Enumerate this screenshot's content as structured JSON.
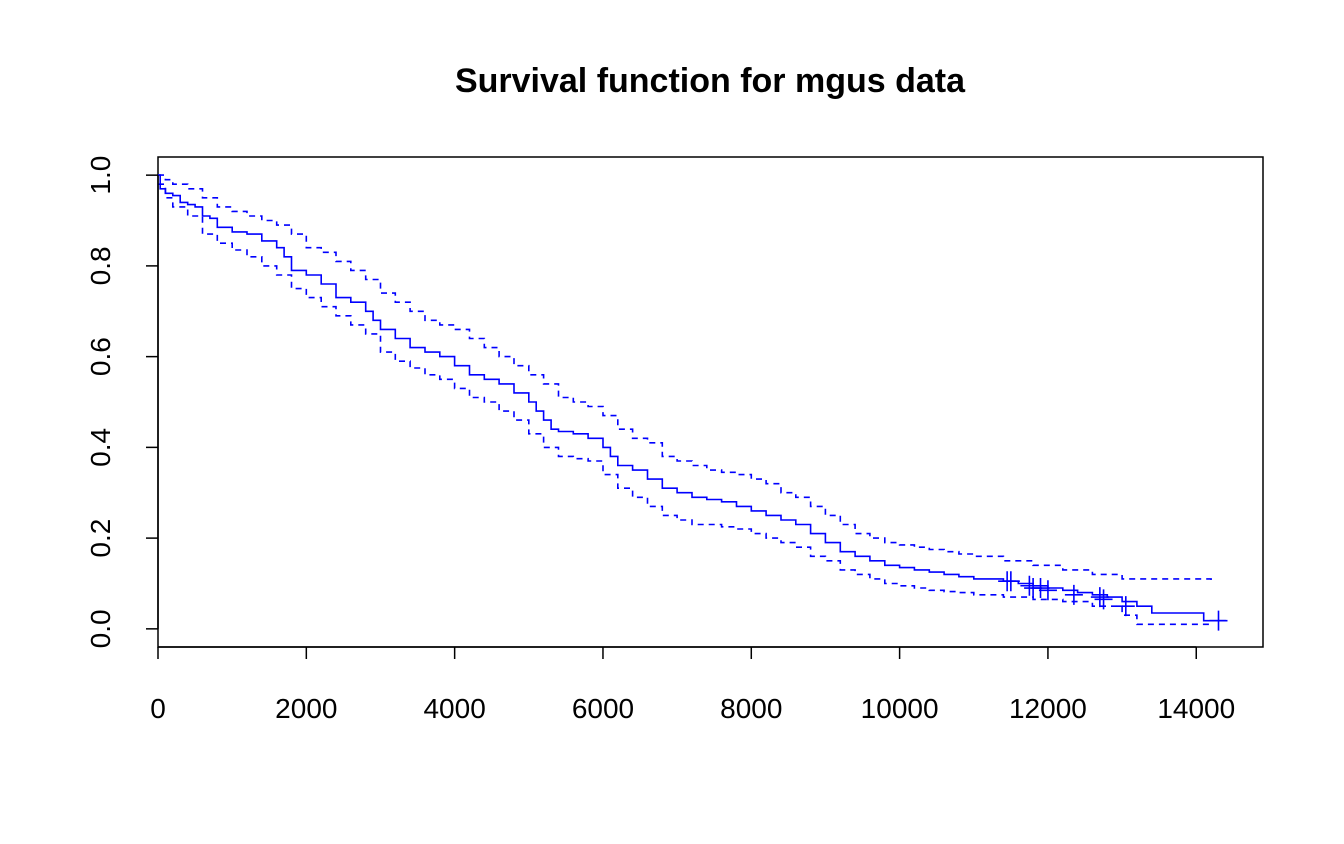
{
  "chart_data": {
    "type": "line",
    "title": "Survival function for mgus data",
    "xlabel": "",
    "ylabel": "",
    "xlim": [
      0,
      14900
    ],
    "ylim": [
      -0.04,
      1.04
    ],
    "x_ticks": [
      0,
      2000,
      4000,
      6000,
      8000,
      10000,
      12000,
      14000
    ],
    "x_tick_labels": [
      "0",
      "2000",
      "4000",
      "6000",
      "8000",
      "10000",
      "12000",
      "14000"
    ],
    "y_ticks": [
      0.0,
      0.2,
      0.4,
      0.6,
      0.8,
      1.0
    ],
    "y_tick_labels": [
      "0.0",
      "0.2",
      "0.4",
      "0.6",
      "0.8",
      "1.0"
    ],
    "grid": false,
    "color": "#0000ff",
    "series": [
      {
        "role": "estimate",
        "style": "solid",
        "x": [
          0,
          30,
          100,
          200,
          300,
          400,
          500,
          600,
          700,
          800,
          1000,
          1200,
          1400,
          1600,
          1700,
          1800,
          2000,
          2200,
          2400,
          2600,
          2800,
          2900,
          3000,
          3200,
          3400,
          3600,
          3800,
          4000,
          4200,
          4400,
          4600,
          4800,
          5000,
          5100,
          5200,
          5300,
          5400,
          5600,
          5800,
          6000,
          6100,
          6200,
          6400,
          6600,
          6800,
          7000,
          7200,
          7400,
          7600,
          7800,
          8000,
          8200,
          8400,
          8600,
          8800,
          9000,
          9200,
          9400,
          9600,
          9800,
          10000,
          10200,
          10400,
          10600,
          10800,
          11000,
          11200,
          11400,
          11600,
          11800,
          12000,
          12200,
          12400,
          12600,
          12800,
          13000,
          13200,
          13400,
          13600,
          13800,
          14000,
          14100,
          14400
        ],
        "y": [
          1.0,
          0.97,
          0.96,
          0.955,
          0.94,
          0.935,
          0.93,
          0.91,
          0.905,
          0.885,
          0.875,
          0.87,
          0.855,
          0.84,
          0.82,
          0.79,
          0.78,
          0.76,
          0.73,
          0.72,
          0.7,
          0.68,
          0.66,
          0.64,
          0.62,
          0.61,
          0.6,
          0.58,
          0.56,
          0.55,
          0.54,
          0.52,
          0.5,
          0.48,
          0.46,
          0.44,
          0.435,
          0.43,
          0.42,
          0.4,
          0.38,
          0.36,
          0.35,
          0.33,
          0.31,
          0.3,
          0.29,
          0.285,
          0.28,
          0.27,
          0.26,
          0.25,
          0.24,
          0.23,
          0.21,
          0.19,
          0.17,
          0.16,
          0.15,
          0.14,
          0.135,
          0.13,
          0.125,
          0.12,
          0.115,
          0.11,
          0.11,
          0.105,
          0.1,
          0.095,
          0.09,
          0.085,
          0.08,
          0.075,
          0.07,
          0.06,
          0.05,
          0.035,
          0.035,
          0.035,
          0.035,
          0.018,
          0.018
        ]
      },
      {
        "role": "upper confidence limit",
        "style": "dashed",
        "x": [
          0,
          100,
          200,
          400,
          600,
          800,
          1000,
          1200,
          1400,
          1600,
          1800,
          2000,
          2200,
          2400,
          2600,
          2800,
          3000,
          3200,
          3400,
          3600,
          3800,
          4000,
          4200,
          4400,
          4600,
          4800,
          5000,
          5200,
          5400,
          5600,
          5800,
          6000,
          6200,
          6400,
          6600,
          6800,
          7000,
          7200,
          7400,
          7600,
          7800,
          8000,
          8200,
          8400,
          8600,
          8800,
          9000,
          9200,
          9400,
          9600,
          9800,
          10000,
          10200,
          10400,
          10600,
          10800,
          11000,
          11400,
          11800,
          12200,
          12600,
          13000,
          14200
        ],
        "y": [
          1.0,
          0.99,
          0.98,
          0.97,
          0.95,
          0.93,
          0.92,
          0.91,
          0.9,
          0.89,
          0.87,
          0.84,
          0.83,
          0.81,
          0.79,
          0.77,
          0.74,
          0.72,
          0.7,
          0.68,
          0.67,
          0.66,
          0.64,
          0.62,
          0.6,
          0.58,
          0.56,
          0.54,
          0.51,
          0.5,
          0.49,
          0.47,
          0.44,
          0.42,
          0.41,
          0.38,
          0.37,
          0.36,
          0.35,
          0.345,
          0.34,
          0.33,
          0.32,
          0.3,
          0.29,
          0.27,
          0.25,
          0.23,
          0.21,
          0.2,
          0.19,
          0.185,
          0.18,
          0.175,
          0.17,
          0.165,
          0.16,
          0.15,
          0.14,
          0.13,
          0.12,
          0.11,
          0.1
        ]
      },
      {
        "role": "lower confidence limit",
        "style": "dashed",
        "x": [
          0,
          100,
          200,
          400,
          600,
          800,
          1000,
          1200,
          1400,
          1600,
          1800,
          2000,
          2200,
          2400,
          2600,
          2800,
          3000,
          3200,
          3400,
          3600,
          3800,
          4000,
          4200,
          4400,
          4600,
          4800,
          5000,
          5200,
          5400,
          5600,
          5800,
          6000,
          6200,
          6400,
          6600,
          6800,
          7000,
          7200,
          7400,
          7600,
          7800,
          8000,
          8200,
          8400,
          8600,
          8800,
          9000,
          9200,
          9400,
          9600,
          9800,
          10000,
          10200,
          10400,
          10600,
          10800,
          11000,
          11400,
          11800,
          12200,
          12600,
          13000,
          13200,
          14200
        ],
        "y": [
          0.98,
          0.95,
          0.93,
          0.91,
          0.87,
          0.85,
          0.835,
          0.82,
          0.8,
          0.78,
          0.75,
          0.73,
          0.71,
          0.69,
          0.67,
          0.65,
          0.61,
          0.59,
          0.575,
          0.56,
          0.55,
          0.53,
          0.51,
          0.5,
          0.48,
          0.46,
          0.43,
          0.4,
          0.38,
          0.375,
          0.37,
          0.34,
          0.31,
          0.29,
          0.27,
          0.25,
          0.24,
          0.23,
          0.23,
          0.225,
          0.22,
          0.21,
          0.2,
          0.19,
          0.18,
          0.16,
          0.15,
          0.13,
          0.12,
          0.11,
          0.1,
          0.095,
          0.09,
          0.085,
          0.082,
          0.08,
          0.075,
          0.07,
          0.065,
          0.06,
          0.05,
          0.03,
          0.01,
          0.005
        ]
      }
    ],
    "censor_marks": {
      "x": [
        11450,
        11500,
        11750,
        11800,
        11900,
        12000,
        12350,
        12700,
        12750,
        13050,
        14300
      ],
      "y": [
        0.105,
        0.105,
        0.095,
        0.09,
        0.09,
        0.085,
        0.075,
        0.07,
        0.065,
        0.05,
        0.018
      ]
    }
  }
}
